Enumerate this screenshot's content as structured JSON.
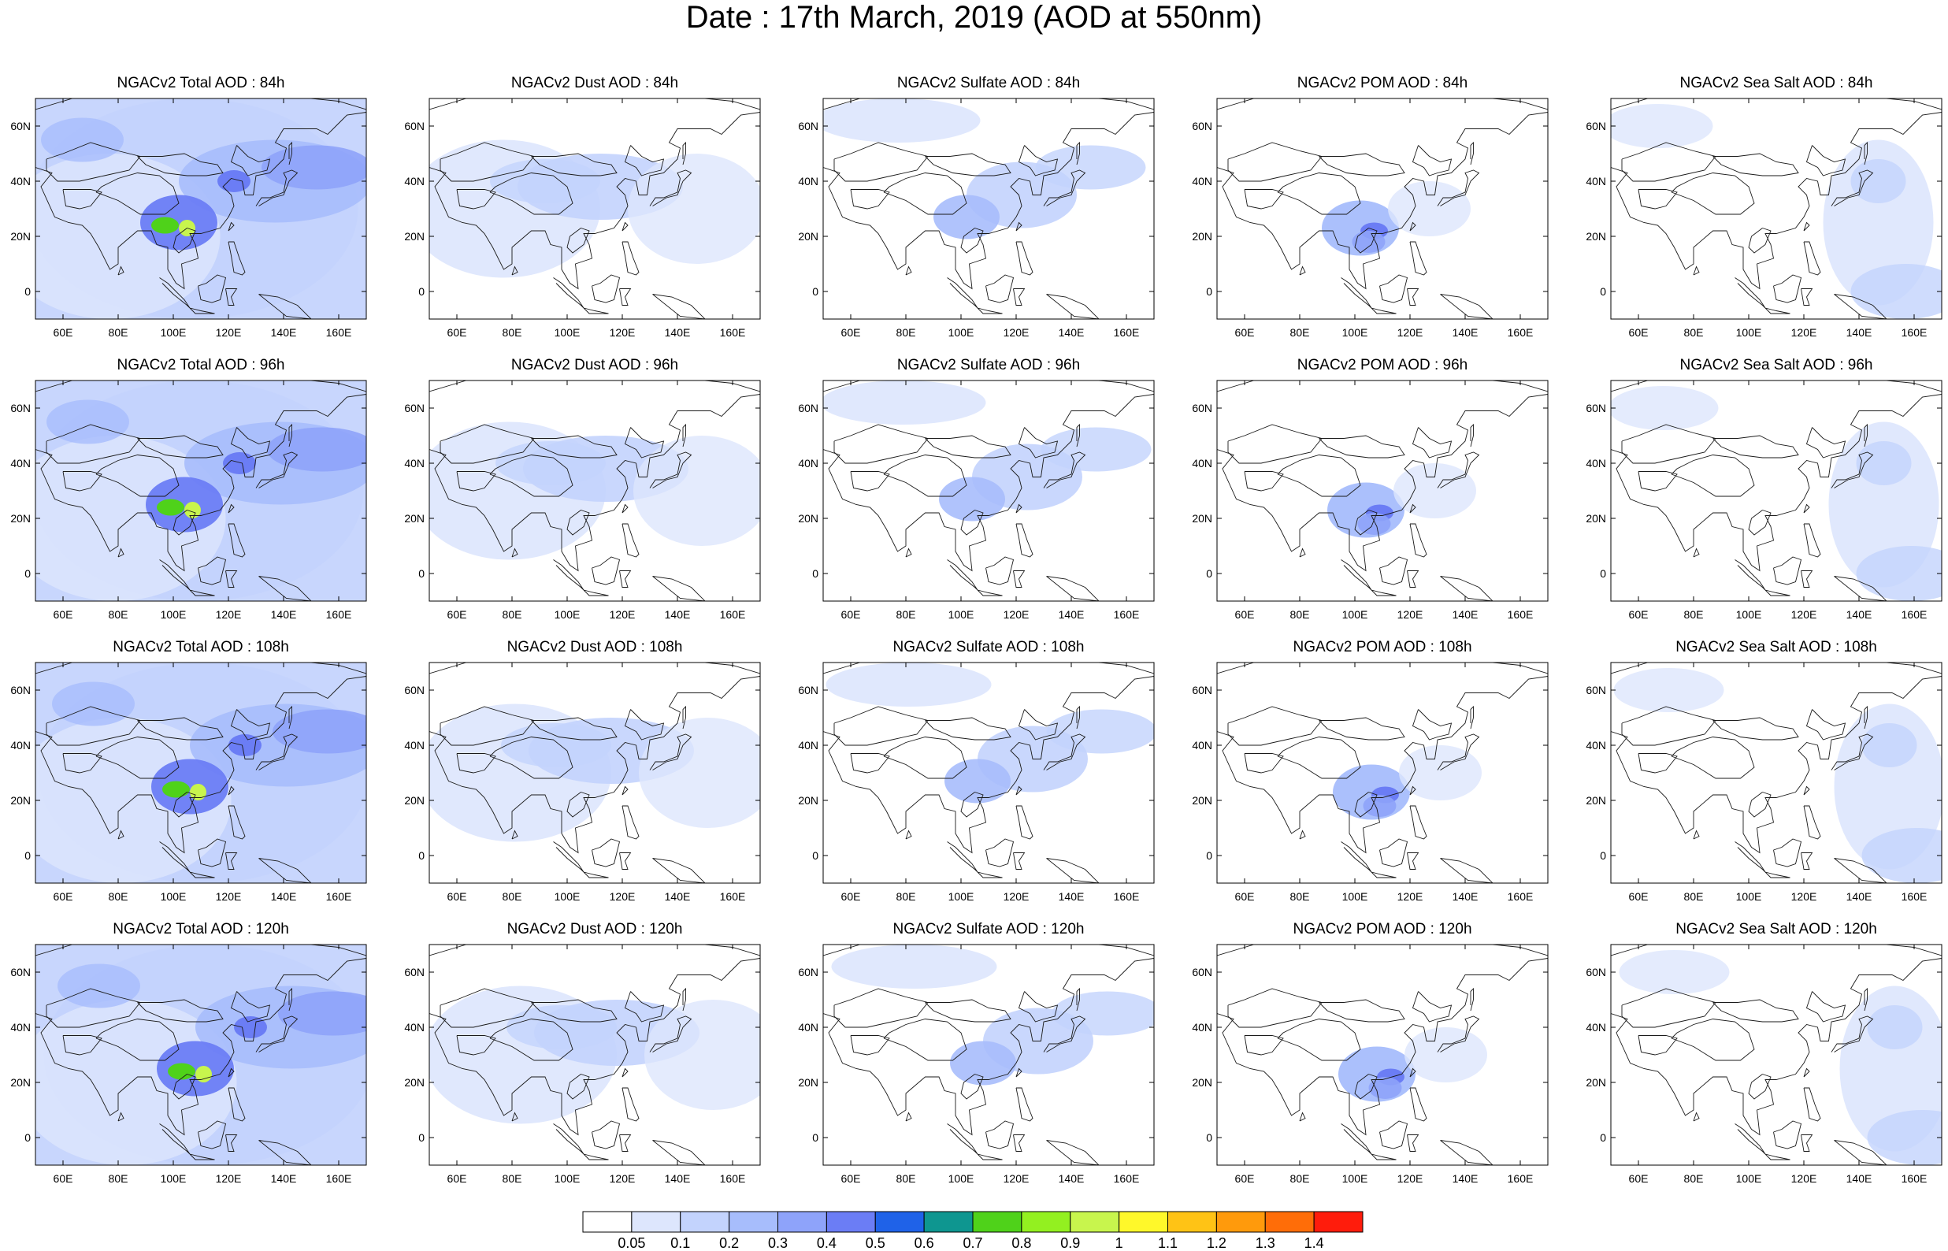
{
  "title": "Date : 17th March, 2019 (AOD at 550nm)",
  "lon_ticks": [
    "60E",
    "80E",
    "100E",
    "120E",
    "140E",
    "160E"
  ],
  "lat_ticks": [
    "60N",
    "40N",
    "20N",
    "0"
  ],
  "rows": [
    {
      "lead": "84h",
      "titles": [
        "NGACv2 Total AOD : 84h",
        "NGACv2 Dust AOD : 84h",
        "NGACv2 Sulfate AOD : 84h",
        "NGACv2 POM AOD : 84h",
        "NGACv2 Sea Salt AOD : 84h"
      ]
    },
    {
      "lead": "96h",
      "titles": [
        "NGACv2 Total AOD : 96h",
        "NGACv2 Dust AOD : 96h",
        "NGACv2 Sulfate AOD : 96h",
        "NGACv2 POM AOD : 96h",
        "NGACv2 Sea Salt AOD : 96h"
      ]
    },
    {
      "lead": "108h",
      "titles": [
        "NGACv2 Total AOD : 108h",
        "NGACv2 Dust AOD : 108h",
        "NGACv2 Sulfate AOD : 108h",
        "NGACv2 POM AOD : 108h",
        "NGACv2 Sea Salt AOD : 108h"
      ]
    },
    {
      "lead": "120h",
      "titles": [
        "NGACv2 Total AOD : 120h",
        "NGACv2 Dust AOD : 120h",
        "NGACv2 Sulfate AOD : 120h",
        "NGACv2 POM AOD : 120h",
        "NGACv2 Sea Salt  AOD : 120h"
      ]
    }
  ],
  "colorbar": {
    "labels": [
      "0.05",
      "0.1",
      "0.2",
      "0.3",
      "0.4",
      "0.5",
      "0.6",
      "0.7",
      "0.8",
      "0.9",
      "1",
      "1.1",
      "1.2",
      "1.3",
      "1.4"
    ],
    "colors": [
      "#ffffff",
      "#dde6fd",
      "#c3d3fd",
      "#a7bdfc",
      "#8ea3fa",
      "#6b7df5",
      "#1f62e8",
      "#0e9690",
      "#4fd21a",
      "#93f020",
      "#c8f54d",
      "#fff82a",
      "#ffc315",
      "#ff9a0c",
      "#ff6d08",
      "#ff1c0c"
    ]
  }
}
